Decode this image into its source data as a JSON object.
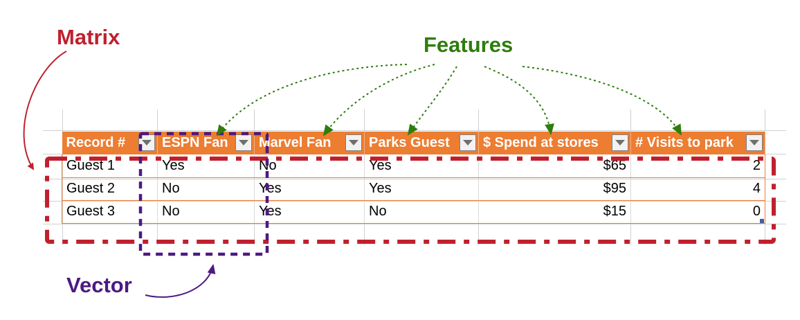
{
  "labels": {
    "matrix": "Matrix",
    "features": "Features",
    "vector": "Vector"
  },
  "colors": {
    "matrix": "#c0202e",
    "features": "#2e7d0d",
    "vector": "#4b1a82",
    "header": "#ed7d31",
    "header_text": "#ffffff"
  },
  "table": {
    "headers": [
      "Record #",
      "ESPN Fan",
      "Marvel Fan",
      "Parks Guest",
      "$ Spend at stores",
      "# Visits to park"
    ],
    "rows": [
      [
        "Guest 1",
        "Yes",
        "No",
        "Yes",
        "$65",
        "2"
      ],
      [
        "Guest 2",
        "No",
        "Yes",
        "Yes",
        "$95",
        "4"
      ],
      [
        "Guest 3",
        "No",
        "Yes",
        "No",
        "$15",
        "0"
      ]
    ]
  }
}
